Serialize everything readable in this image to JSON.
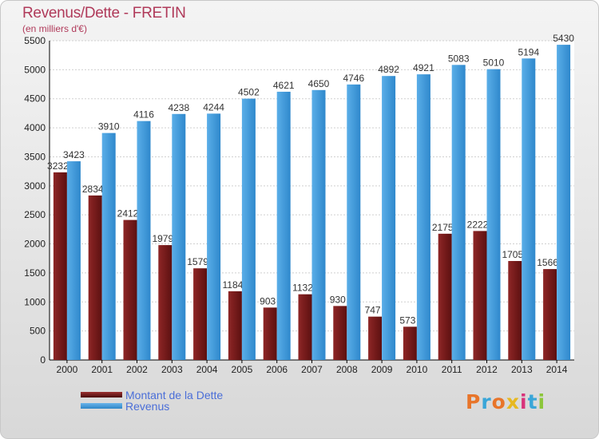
{
  "chart_data": {
    "type": "bar",
    "title": "Revenus/Dette - FRETIN",
    "subtitle": "(en milliers d'€)",
    "categories": [
      "2000",
      "2001",
      "2002",
      "2003",
      "2004",
      "2005",
      "2006",
      "2007",
      "2008",
      "2009",
      "2010",
      "2011",
      "2012",
      "2013",
      "2014"
    ],
    "series": [
      {
        "name": "Montant de la Dette",
        "color": "#7a1c1c",
        "values": [
          3232,
          2834,
          2412,
          1979,
          1579,
          1184,
          903,
          1132,
          930,
          747,
          573,
          2175,
          2222,
          1705,
          1566
        ],
        "labels": [
          "3232",
          "2834",
          "2412",
          "1979",
          "1579",
          "1184",
          "903",
          "1132",
          "930",
          "747",
          "573",
          "2175",
          "2222",
          "1705",
          "1566"
        ]
      },
      {
        "name": "Revenus",
        "color": "#3a97dd",
        "values": [
          3423,
          3910,
          4116,
          4238,
          4244,
          4502,
          4621,
          4650,
          4746,
          4892,
          4921,
          5083,
          5010,
          5194,
          5430
        ],
        "labels": [
          "3423",
          "3910",
          "4116",
          "4238",
          "4244",
          "4502",
          "4621",
          "4650",
          "4746",
          "4892",
          "4921",
          "5083",
          "5010",
          "5194",
          "5430"
        ]
      }
    ],
    "yticks": [
      "0",
      "500",
      "1000",
      "1500",
      "2000",
      "2500",
      "3000",
      "3500",
      "4000",
      "4500",
      "5000",
      "5500"
    ],
    "ylim": [
      0,
      5500
    ],
    "grid": true,
    "legend_position": "bottom-left"
  },
  "legend": {
    "debt_label": "Montant de la Dette",
    "revenue_label": "Revenus"
  },
  "logo": {
    "text": "Proxiti"
  }
}
